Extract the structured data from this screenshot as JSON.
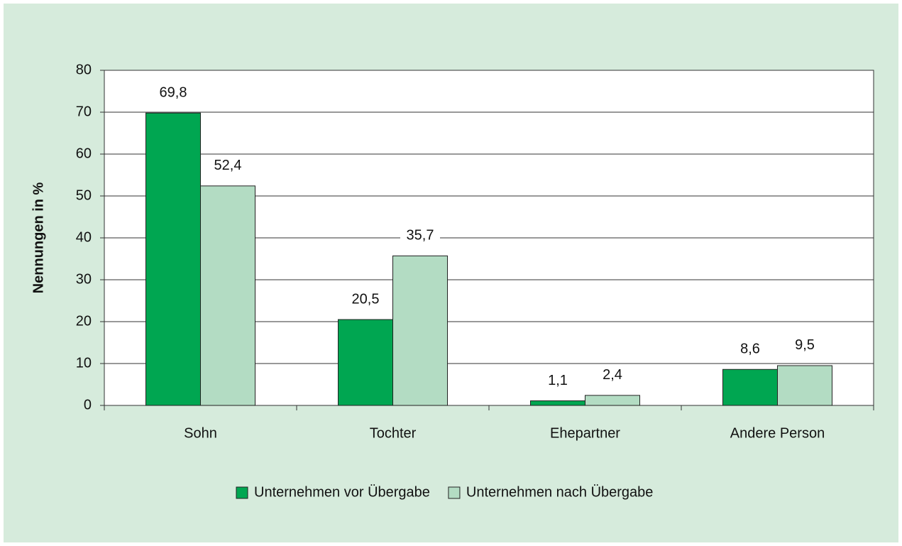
{
  "chart_data": {
    "type": "bar",
    "y_label": "Nennungen in %",
    "categories": [
      "Sohn",
      "Tochter",
      "Ehepartner",
      "Andere Person"
    ],
    "series": [
      {
        "name": "Unternehmen vor Übergabe",
        "color": "#00a651",
        "values": [
          69.8,
          20.5,
          1.1,
          8.6
        ],
        "value_labels": [
          "69,8",
          "20,5",
          "1,1",
          "8,6"
        ]
      },
      {
        "name": "Unternehmen nach Übergabe",
        "color": "#b3dcc3",
        "values": [
          52.4,
          35.7,
          2.4,
          9.5
        ],
        "value_labels": [
          "52,4",
          "35,7",
          "2,4",
          "9,5"
        ]
      }
    ],
    "ylim": [
      0,
      80
    ],
    "yticks": [
      0,
      10,
      20,
      30,
      40,
      50,
      60,
      70,
      80
    ],
    "grid": true,
    "legend": "bottom"
  }
}
